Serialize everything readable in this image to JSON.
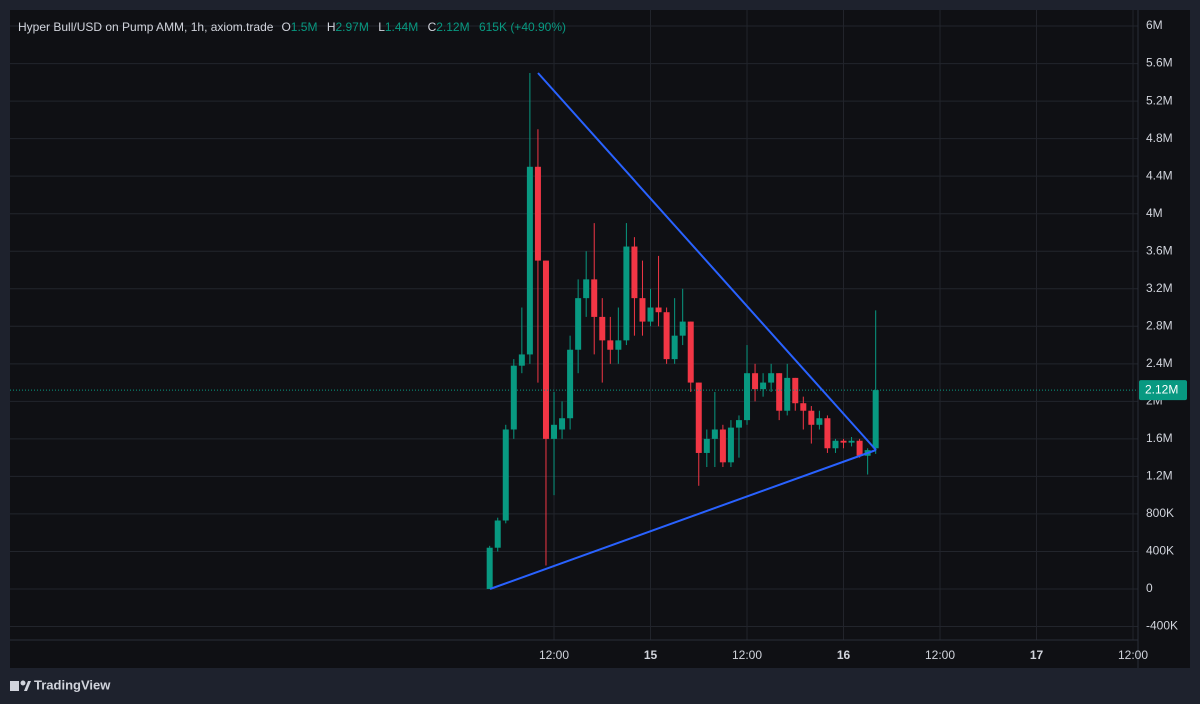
{
  "chart_data": {
    "type": "candlestick",
    "title": "Hyper Bull/USD on Pump AMM, 1h, axiom.trade",
    "legend": {
      "o": "O",
      "open": "1.5M",
      "h": "H",
      "high": "2.97M",
      "l": "L",
      "low": "1.44M",
      "c": "C",
      "close": "2.12M",
      "change": "615K (+40.90%)"
    },
    "brand": "TradingView",
    "up_color": "#089981",
    "down_color": "#f23645",
    "grid": true,
    "x": [
      4,
      5,
      6,
      7,
      8,
      9,
      10,
      11,
      12,
      13,
      14,
      15,
      16,
      17,
      18,
      19,
      20,
      21,
      22,
      23,
      24,
      25,
      26,
      27,
      28,
      29,
      30,
      31,
      32,
      33,
      34,
      35,
      36,
      37,
      38,
      39,
      40,
      41,
      42,
      43,
      44,
      45,
      46,
      47,
      48,
      49,
      50,
      51,
      52
    ],
    "open": [
      0,
      440000,
      730000,
      1700000,
      2380000,
      2500000,
      4500000,
      3500000,
      1600000,
      1700000,
      1820000,
      2550000,
      3100000,
      3300000,
      2900000,
      2650000,
      2550000,
      2650000,
      3650000,
      3100000,
      2850000,
      3000000,
      2950000,
      2450000,
      2700000,
      2850000,
      2200000,
      1450000,
      1600000,
      1700000,
      1350000,
      1720000,
      1800000,
      2300000,
      2130000,
      2200000,
      2300000,
      1900000,
      2250000,
      1980000,
      1900000,
      1750000,
      1820000,
      1500000,
      1580000,
      1560000,
      1580000,
      1420000,
      1500000
    ],
    "high": [
      460000,
      760000,
      1750000,
      2450000,
      3000000,
      5500000,
      4900000,
      3500000,
      2100000,
      2000000,
      2700000,
      3300000,
      3600000,
      3900000,
      3100000,
      2900000,
      3000000,
      3900000,
      3750000,
      3500000,
      3200000,
      3550000,
      3000000,
      3100000,
      3200000,
      2850000,
      2200000,
      1700000,
      2100000,
      1750000,
      1800000,
      1850000,
      2600000,
      2400000,
      2300000,
      2400000,
      2300000,
      2400000,
      2250000,
      2050000,
      1950000,
      1900000,
      1850000,
      1600000,
      1600000,
      1620000,
      1600000,
      1500000,
      2970000
    ],
    "low": [
      0,
      400000,
      700000,
      1600000,
      2300000,
      2400000,
      2200000,
      250000,
      1000000,
      1600000,
      1700000,
      2300000,
      2900000,
      2500000,
      2200000,
      2400000,
      2400000,
      2600000,
      2700000,
      2700000,
      2800000,
      2800000,
      2400000,
      2400000,
      2600000,
      2100000,
      1100000,
      1300000,
      1300000,
      1300000,
      1300000,
      1400000,
      1750000,
      2000000,
      2050000,
      2100000,
      1800000,
      1850000,
      1900000,
      1700000,
      1550000,
      1700000,
      1450000,
      1450000,
      1500000,
      1520000,
      1400000,
      1220000,
      1440000
    ],
    "close": [
      440000,
      730000,
      1700000,
      2380000,
      2500000,
      4500000,
      3500000,
      1600000,
      1750000,
      1820000,
      2550000,
      3100000,
      3300000,
      2900000,
      2650000,
      2550000,
      2650000,
      3650000,
      3100000,
      2850000,
      3000000,
      2950000,
      2450000,
      2700000,
      2850000,
      2200000,
      1450000,
      1600000,
      1700000,
      1350000,
      1720000,
      1800000,
      2300000,
      2130000,
      2200000,
      2300000,
      1900000,
      2250000,
      1980000,
      1900000,
      1750000,
      1820000,
      1500000,
      1580000,
      1560000,
      1580000,
      1420000,
      1480000,
      2120000
    ],
    "xlim": [
      -55.65,
      84.62
    ],
    "xticks": [
      {
        "value": 12,
        "label": "12:00"
      },
      {
        "value": 24,
        "label": "15"
      },
      {
        "value": 36,
        "label": "12:00"
      },
      {
        "value": 48,
        "label": "16"
      },
      {
        "value": 60,
        "label": "12:00"
      },
      {
        "value": 72,
        "label": "17"
      },
      {
        "value": 84,
        "label": "12:00"
      }
    ],
    "ylim": [
      -543600,
      6171000
    ],
    "yticks": [
      {
        "value": -400000,
        "label": "-400K"
      },
      0,
      {
        "value": 400000,
        "label": "400K"
      },
      {
        "value": 800000,
        "label": "800K"
      },
      {
        "value": 1200000,
        "label": "1.2M"
      },
      {
        "value": 1600000,
        "label": "1.6M"
      },
      {
        "value": 2000000,
        "label": "2M"
      },
      {
        "value": 2400000,
        "label": "2.4M"
      },
      {
        "value": 2800000,
        "label": "2.8M"
      },
      {
        "value": 3200000,
        "label": "3.2M"
      },
      {
        "value": 3600000,
        "label": "3.6M"
      },
      {
        "value": 4000000,
        "label": "4M"
      },
      {
        "value": 4400000,
        "label": "4.4M"
      },
      {
        "value": 4800000,
        "label": "4.8M"
      },
      {
        "value": 5200000,
        "label": "5.2M"
      },
      {
        "value": 5600000,
        "label": "5.6M"
      },
      {
        "value": 6000000,
        "label": "6M"
      }
    ],
    "last_price": {
      "value": 2120000,
      "label": "2.12M"
    }
  }
}
